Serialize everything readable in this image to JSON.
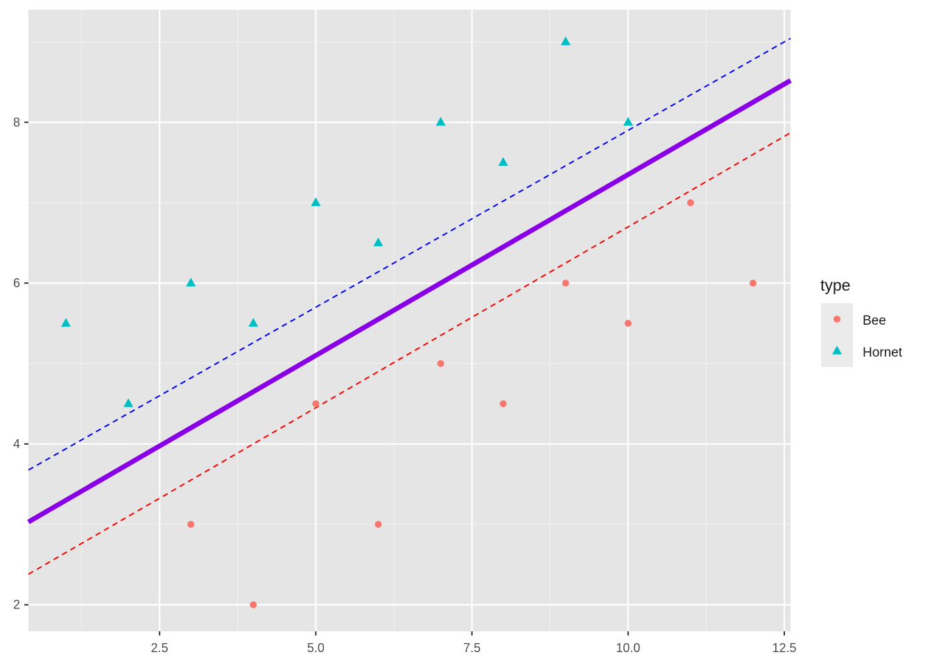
{
  "chart_data": {
    "type": "scatter",
    "title": "",
    "xlabel": "",
    "ylabel": "",
    "xlim": [
      0.4,
      12.6
    ],
    "ylim": [
      1.67,
      9.4
    ],
    "x_ticks": [
      2.5,
      5.0,
      7.5,
      10.0,
      12.5
    ],
    "x_tick_labels": [
      "2.5",
      "5.0",
      "7.5",
      "10.0",
      "12.5"
    ],
    "y_ticks": [
      2,
      4,
      6,
      8
    ],
    "y_tick_labels": [
      "2",
      "4",
      "6",
      "8"
    ],
    "grid": true,
    "panel_background": "#e5e5e5",
    "legend": {
      "title": "type",
      "position": "right",
      "entries": [
        {
          "label": "Bee",
          "shape": "circle",
          "color": "#f8766d"
        },
        {
          "label": "Hornet",
          "shape": "triangle",
          "color": "#00bfc4"
        }
      ]
    },
    "series": [
      {
        "name": "Bee",
        "shape": "circle",
        "color": "#f8766d",
        "points": [
          [
            3,
            3
          ],
          [
            4,
            2
          ],
          [
            5,
            4.5
          ],
          [
            6,
            3
          ],
          [
            7,
            5
          ],
          [
            8,
            4.5
          ],
          [
            9,
            6
          ],
          [
            10,
            5.5
          ],
          [
            11,
            7
          ],
          [
            12,
            6
          ]
        ]
      },
      {
        "name": "Hornet",
        "shape": "triangle",
        "color": "#00bfc4",
        "points": [
          [
            1,
            5.5
          ],
          [
            2,
            4.5
          ],
          [
            3,
            6
          ],
          [
            4,
            5.5
          ],
          [
            5,
            7
          ],
          [
            6,
            6.5
          ],
          [
            7,
            8
          ],
          [
            8,
            7.5
          ],
          [
            9,
            9
          ],
          [
            10,
            8
          ]
        ]
      }
    ],
    "lines": [
      {
        "style": "dashed",
        "color": "#0000ff",
        "width": 2,
        "intercept": 3.5,
        "slope": 0.44
      },
      {
        "style": "solid",
        "color": "#8a00e6",
        "width": 7,
        "intercept": 2.85,
        "slope": 0.45
      },
      {
        "style": "dashed",
        "color": "#ff0000",
        "width": 2,
        "intercept": 2.2,
        "slope": 0.45
      }
    ]
  }
}
